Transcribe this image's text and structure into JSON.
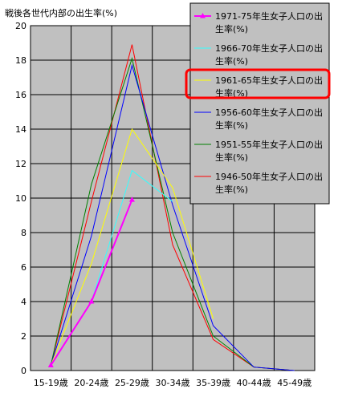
{
  "chart_data": {
    "type": "line",
    "title": "",
    "ylabel": "戦後各世代内部の出生率(%)",
    "xlabel": "",
    "categories": [
      "15-19歳",
      "20-24歳",
      "25-29歳",
      "30-34歳",
      "35-39歳",
      "40-44歳",
      "45-49歳"
    ],
    "ylim": [
      0,
      20
    ],
    "yticks": [
      0,
      2,
      4,
      6,
      8,
      10,
      12,
      14,
      16,
      18,
      20
    ],
    "grid": true,
    "legend_position": "top-right",
    "highlighted_series": "1961-65年生女子人口の出生率(%)",
    "series": [
      {
        "name": "1971-75年生女子人口の出生率(%)",
        "color": "#ff00ff",
        "marker": "triangle",
        "values": [
          0.3,
          4.0,
          9.9,
          null,
          null,
          null,
          null
        ]
      },
      {
        "name": "1966-70年生女子人口の出生率(%)",
        "color": "#33ffff",
        "values": [
          0.3,
          4.0,
          11.6,
          9.8,
          null,
          null,
          null
        ]
      },
      {
        "name": "1961-65年生女子人口の出生率(%)",
        "color": "#ffff00",
        "values": [
          0.3,
          6.2,
          14.0,
          10.6,
          3.0,
          null,
          null
        ]
      },
      {
        "name": "1956-60年生女子人口の出生率(%)",
        "color": "#0000ff",
        "values": [
          0.3,
          7.8,
          17.7,
          9.6,
          2.6,
          0.2,
          0.0
        ]
      },
      {
        "name": "1951-55年生女子人口の出生率(%)",
        "color": "#008000",
        "values": [
          0.3,
          10.8,
          18.1,
          8.0,
          2.0,
          0.2,
          0.0
        ]
      },
      {
        "name": "1946-50年生女子人口の出生率(%)",
        "color": "#ff0000",
        "values": [
          0.3,
          9.8,
          18.9,
          7.3,
          1.8,
          0.2,
          0.0
        ]
      }
    ]
  }
}
